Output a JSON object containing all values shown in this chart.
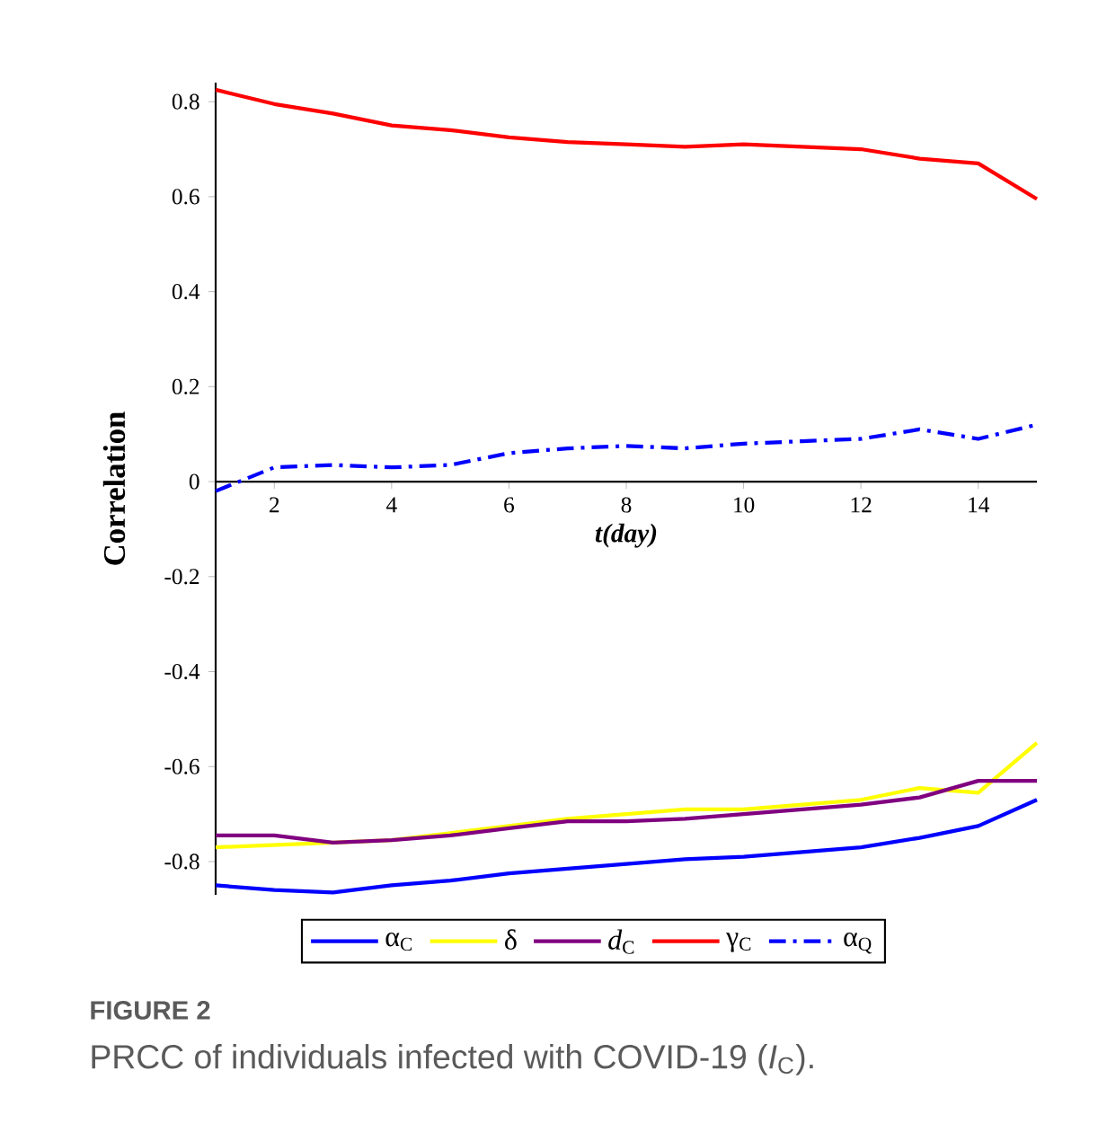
{
  "chart_data": {
    "type": "line",
    "title": "FIGURE 2",
    "subtitle": "PRCC of individuals infected with COVID-19 (*I*$_{C}$).",
    "xlabel": "t(day)",
    "ylabel": "Correlation",
    "x": [
      1,
      2,
      3,
      4,
      5,
      6,
      7,
      8,
      9,
      10,
      11,
      12,
      13,
      14,
      15
    ],
    "xlim": [
      1,
      15
    ],
    "xticks": [
      2,
      4,
      6,
      8,
      10,
      12,
      14
    ],
    "ylim": [
      -0.87,
      0.84
    ],
    "yticks": [
      -0.8,
      -0.6,
      -0.4,
      -0.2,
      0,
      0.2,
      0.4,
      0.6,
      0.8
    ],
    "grid": false,
    "legend": "bottom",
    "marker": "none",
    "line_style": "solid",
    "series": [
      {
        "name": "α$_{C}$",
        "color": "#0000ff",
        "values": [
          -0.85,
          -0.86,
          -0.865,
          -0.85,
          -0.84,
          -0.825,
          -0.815,
          -0.805,
          -0.795,
          -0.79,
          -0.78,
          -0.77,
          -0.75,
          -0.725,
          -0.67
        ]
      },
      {
        "name": "δ",
        "color": "#ffff00",
        "values": [
          -0.77,
          -0.765,
          -0.76,
          -0.755,
          -0.74,
          -0.725,
          -0.71,
          -0.7,
          -0.69,
          -0.69,
          -0.68,
          -0.67,
          -0.645,
          -0.655,
          -0.55
        ]
      },
      {
        "name": "*d*$_{C}$",
        "color": "#800080",
        "values": [
          -0.745,
          -0.745,
          -0.76,
          -0.755,
          -0.745,
          -0.73,
          -0.715,
          -0.715,
          -0.71,
          -0.7,
          -0.69,
          -0.68,
          -0.665,
          -0.63,
          -0.63
        ]
      },
      {
        "name": "γ$_{C}$",
        "color": "#ff0000",
        "values": [
          0.825,
          0.795,
          0.775,
          0.75,
          0.74,
          0.725,
          0.715,
          0.71,
          0.705,
          0.71,
          0.705,
          0.7,
          0.68,
          0.67,
          0.595
        ]
      },
      {
        "name": "α$_{Q}$",
        "color": "#0000ff",
        "line_style": "dashdot",
        "values": [
          -0.02,
          0.03,
          0.035,
          0.03,
          0.035,
          0.06,
          0.07,
          0.075,
          0.07,
          0.08,
          0.085,
          0.09,
          0.11,
          0.09,
          0.12
        ]
      }
    ]
  }
}
